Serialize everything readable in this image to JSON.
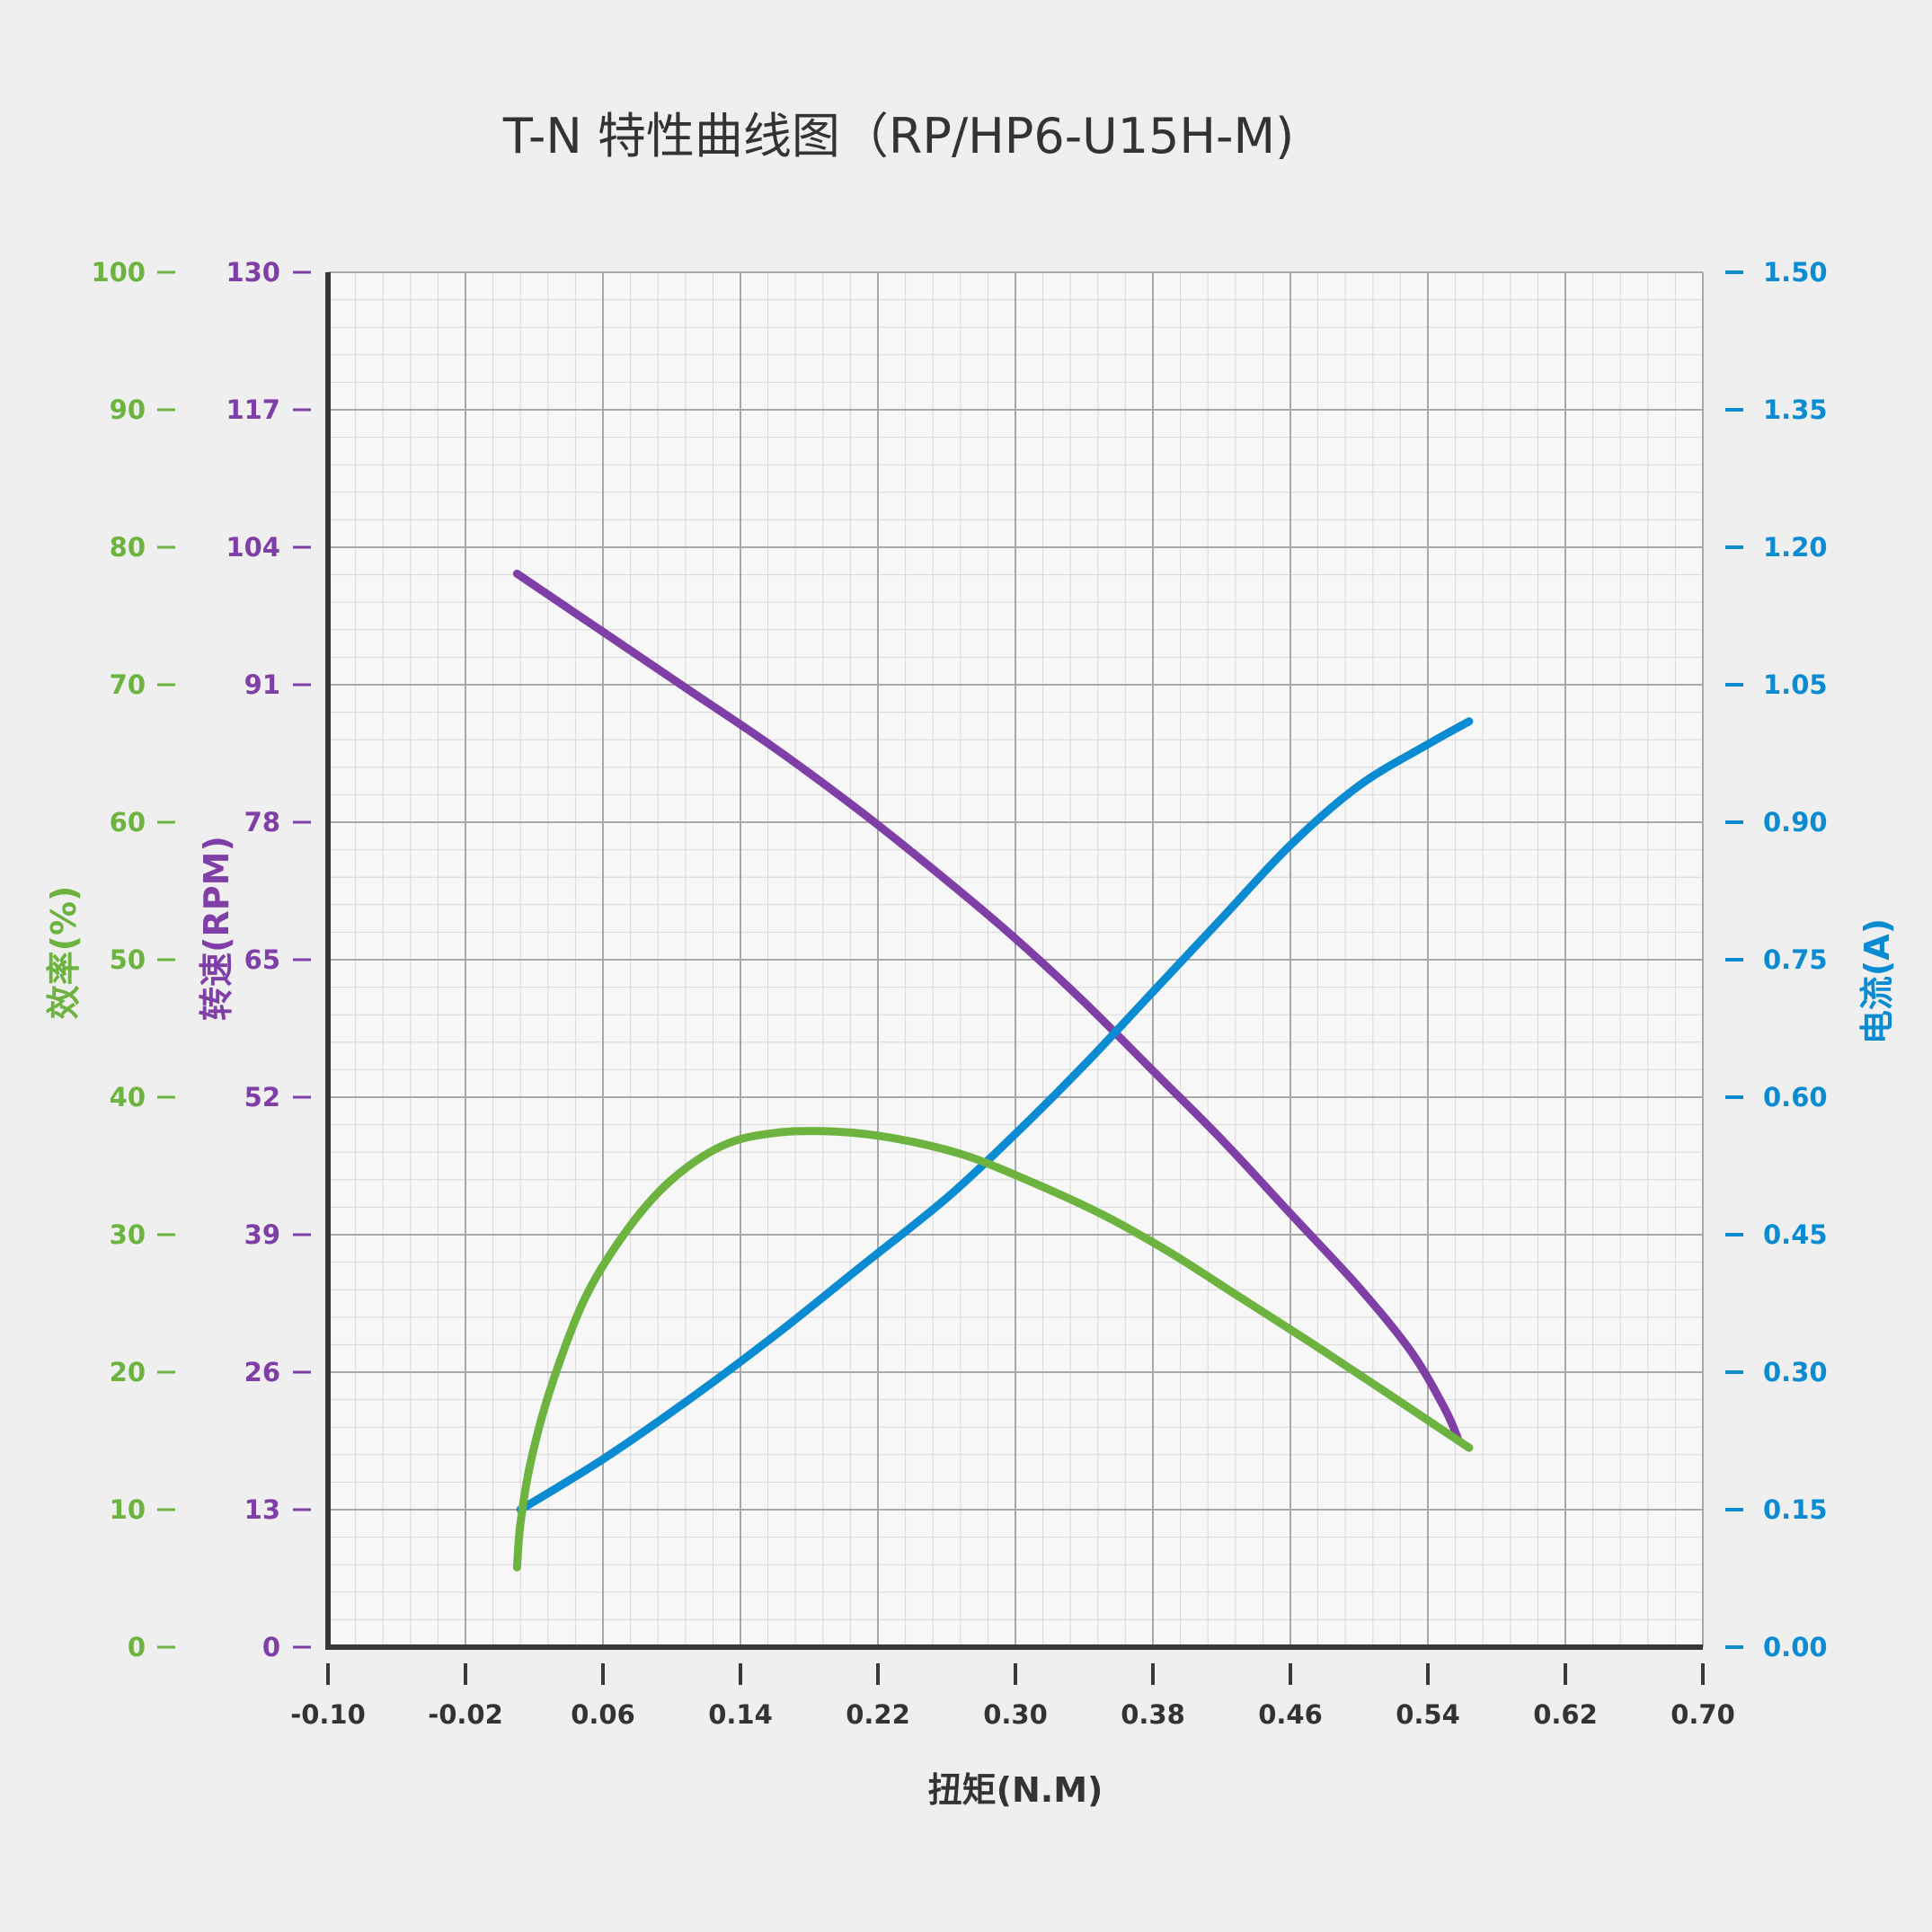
{
  "chart_data": {
    "type": "line",
    "title": "T-N 特性曲线图（RP/HP6-U15H-M)",
    "xlabel": "扭矩(N.M)",
    "x_ticks": [
      "-0.10",
      "-0.02",
      "0.06",
      "0.14",
      "0.22",
      "0.30",
      "0.38",
      "0.46",
      "0.54",
      "0.62",
      "0.70"
    ],
    "xlim": [
      -0.1,
      0.7
    ],
    "grid": true,
    "axes": {
      "efficiency": {
        "label": "效率(%)",
        "color": "#6db33f",
        "lim": [
          0,
          100
        ],
        "ticks": [
          "0",
          "10",
          "20",
          "30",
          "40",
          "50",
          "60",
          "70",
          "80",
          "90",
          "100"
        ]
      },
      "speed": {
        "label": "转速(RPM)",
        "color": "#7f3fa6",
        "lim": [
          0,
          130
        ],
        "ticks": [
          "0",
          "13",
          "26",
          "39",
          "52",
          "65",
          "78",
          "91",
          "104",
          "117",
          "130"
        ]
      },
      "current": {
        "label": "电流(A)",
        "color": "#0a8bd2",
        "lim": [
          0,
          1.5
        ],
        "ticks": [
          "0.00",
          "0.15",
          "0.30",
          "0.45",
          "0.60",
          "0.75",
          "0.90",
          "1.05",
          "1.20",
          "1.35",
          "1.50"
        ]
      }
    },
    "series": [
      {
        "name": "转速(RPM)",
        "axis": "speed",
        "color": "#7f3fa6",
        "x": [
          0.01,
          0.06,
          0.11,
          0.16,
          0.21,
          0.26,
          0.3,
          0.34,
          0.38,
          0.42,
          0.46,
          0.5,
          0.53,
          0.55,
          0.558
        ],
        "y": [
          101.5,
          96.0,
          90.5,
          85.0,
          79.0,
          72.5,
          67.0,
          61.0,
          54.5,
          48.0,
          41.0,
          34.0,
          28.0,
          22.5,
          19.5
        ]
      },
      {
        "name": "电流(A)",
        "axis": "current",
        "color": "#0a8bd2",
        "x": [
          0.012,
          0.06,
          0.11,
          0.16,
          0.21,
          0.26,
          0.3,
          0.34,
          0.38,
          0.42,
          0.46,
          0.5,
          0.54,
          0.564
        ],
        "y": [
          0.15,
          0.205,
          0.27,
          0.34,
          0.415,
          0.49,
          0.56,
          0.635,
          0.715,
          0.795,
          0.875,
          0.94,
          0.985,
          1.01
        ]
      },
      {
        "name": "效率(%)",
        "axis": "efficiency",
        "color": "#6db33f",
        "x": [
          0.01,
          0.012,
          0.018,
          0.03,
          0.05,
          0.075,
          0.1,
          0.13,
          0.16,
          0.195,
          0.23,
          0.27,
          0.31,
          0.35,
          0.39,
          0.43,
          0.47,
          0.51,
          0.54,
          0.564
        ],
        "y": [
          5.8,
          9.0,
          13.5,
          19.0,
          25.5,
          30.5,
          34.0,
          36.5,
          37.4,
          37.5,
          37.0,
          35.8,
          33.8,
          31.5,
          28.7,
          25.5,
          22.3,
          19.0,
          16.5,
          14.5
        ]
      }
    ]
  }
}
